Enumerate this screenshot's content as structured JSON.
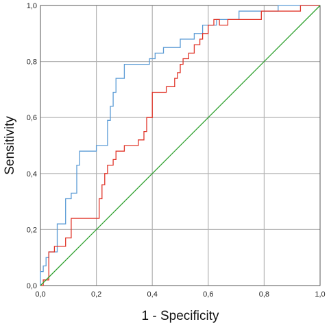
{
  "chart_data": {
    "type": "line",
    "title": "",
    "xlabel": "1 - Specificity",
    "ylabel": "Sensitivity",
    "xlim": [
      0,
      1
    ],
    "ylim": [
      0,
      1
    ],
    "x_ticks": [
      "0,0",
      "0,2",
      "0,4",
      "0,6",
      "0,8",
      "1,0"
    ],
    "y_ticks": [
      "0,0",
      "0,2",
      "0,4",
      "0,6",
      "0,8",
      "1,0"
    ],
    "grid": true,
    "legend": "none",
    "series": [
      {
        "color": "#5b9bd5",
        "x": [
          0.0,
          0.0,
          0.01,
          0.01,
          0.02,
          0.02,
          0.03,
          0.03,
          0.06,
          0.06,
          0.07,
          0.07,
          0.09,
          0.09,
          0.11,
          0.11,
          0.13,
          0.13,
          0.14,
          0.14,
          0.2,
          0.2,
          0.24,
          0.24,
          0.25,
          0.25,
          0.26,
          0.26,
          0.27,
          0.27,
          0.3,
          0.3,
          0.33,
          0.33,
          0.39,
          0.39,
          0.41,
          0.41,
          0.44,
          0.44,
          0.5,
          0.5,
          0.55,
          0.55,
          0.58,
          0.58,
          0.63,
          0.63,
          0.71,
          0.71,
          0.76,
          0.76,
          0.85,
          0.85,
          0.91,
          0.91,
          1.0
        ],
        "y": [
          0.0,
          0.05,
          0.05,
          0.07,
          0.07,
          0.1,
          0.1,
          0.12,
          0.12,
          0.22,
          0.22,
          0.22,
          0.22,
          0.31,
          0.31,
          0.33,
          0.33,
          0.43,
          0.43,
          0.48,
          0.48,
          0.5,
          0.5,
          0.59,
          0.59,
          0.64,
          0.64,
          0.69,
          0.69,
          0.74,
          0.74,
          0.79,
          0.79,
          0.79,
          0.79,
          0.81,
          0.81,
          0.83,
          0.83,
          0.85,
          0.85,
          0.88,
          0.88,
          0.9,
          0.9,
          0.93,
          0.93,
          0.95,
          0.95,
          0.98,
          0.98,
          0.98,
          0.98,
          1.0,
          1.0,
          1.0,
          1.0
        ]
      },
      {
        "color": "#e03428",
        "x": [
          0.0,
          0.01,
          0.01,
          0.03,
          0.03,
          0.05,
          0.05,
          0.09,
          0.09,
          0.11,
          0.11,
          0.21,
          0.21,
          0.22,
          0.22,
          0.23,
          0.23,
          0.24,
          0.24,
          0.26,
          0.26,
          0.27,
          0.27,
          0.3,
          0.3,
          0.35,
          0.35,
          0.37,
          0.37,
          0.38,
          0.38,
          0.4,
          0.4,
          0.42,
          0.42,
          0.45,
          0.45,
          0.48,
          0.48,
          0.49,
          0.49,
          0.5,
          0.5,
          0.51,
          0.51,
          0.53,
          0.53,
          0.55,
          0.55,
          0.57,
          0.57,
          0.58,
          0.58,
          0.6,
          0.6,
          0.62,
          0.62,
          0.64,
          0.64,
          0.67,
          0.67,
          0.72,
          0.72,
          0.79,
          0.79,
          0.85,
          0.85,
          0.93,
          0.93,
          1.0
        ],
        "y": [
          0.0,
          0.0,
          0.02,
          0.02,
          0.12,
          0.12,
          0.14,
          0.14,
          0.17,
          0.17,
          0.24,
          0.24,
          0.31,
          0.31,
          0.36,
          0.36,
          0.4,
          0.4,
          0.43,
          0.43,
          0.45,
          0.45,
          0.48,
          0.48,
          0.5,
          0.5,
          0.52,
          0.52,
          0.55,
          0.55,
          0.6,
          0.6,
          0.69,
          0.69,
          0.69,
          0.69,
          0.71,
          0.71,
          0.74,
          0.74,
          0.76,
          0.76,
          0.79,
          0.79,
          0.81,
          0.81,
          0.83,
          0.83,
          0.86,
          0.86,
          0.88,
          0.88,
          0.9,
          0.9,
          0.93,
          0.93,
          0.95,
          0.95,
          0.93,
          0.93,
          0.95,
          0.95,
          0.95,
          0.95,
          0.98,
          0.98,
          0.98,
          0.98,
          1.0,
          1.0
        ]
      },
      {
        "color": "#2ca02c",
        "x": [
          0.0,
          1.0
        ],
        "y": [
          0.0,
          1.0
        ]
      }
    ]
  }
}
